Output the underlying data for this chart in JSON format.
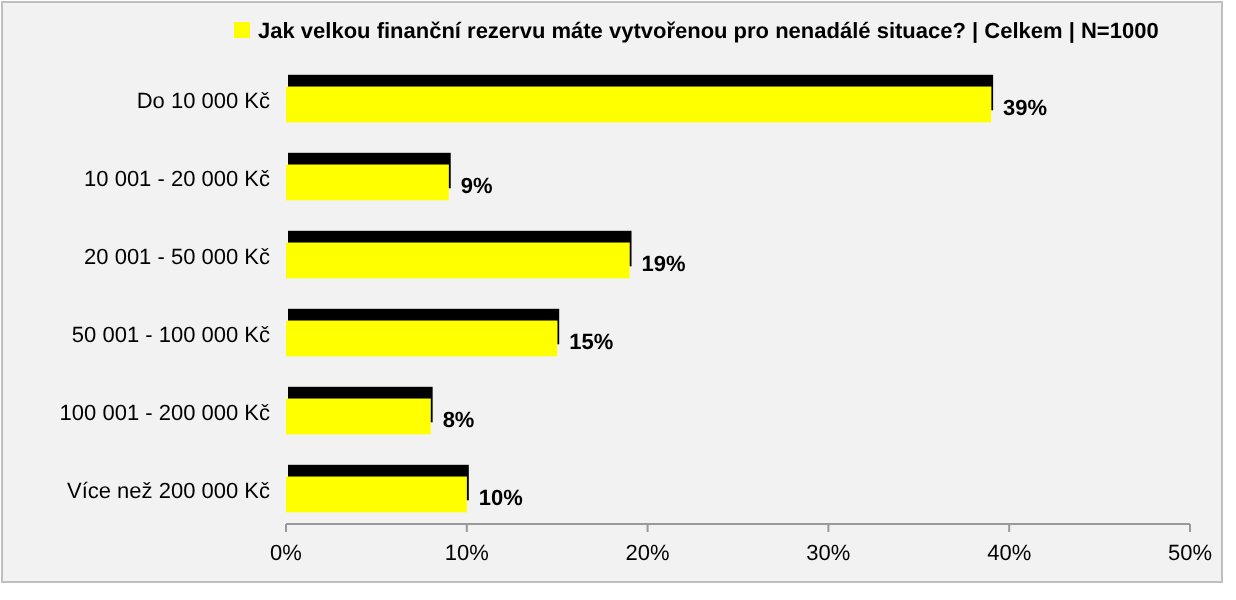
{
  "chart_data": {
    "type": "bar",
    "orientation": "horizontal",
    "categories": [
      "Do 10 000 Kč",
      "10 001 - 20 000 Kč",
      "20 001 - 50 000 Kč",
      "50 001 - 100 000 Kč",
      "100 001 - 200 000 Kč",
      "Více než 200 000 Kč"
    ],
    "series": [
      {
        "name": "Jak velkou finanční rezervu máte vytvořenou pro nenadálé situace? | Celkem | N=1000",
        "color": "#ffff00",
        "values": [
          39,
          9,
          19,
          15,
          8,
          10
        ],
        "value_labels": [
          "39%",
          "9%",
          "19%",
          "15%",
          "8%",
          "10%"
        ]
      }
    ],
    "xlim": [
      0,
      50
    ],
    "xticks": [
      {
        "value": 0,
        "label": "0%"
      },
      {
        "value": 10,
        "label": "10%"
      },
      {
        "value": 20,
        "label": "20%"
      },
      {
        "value": 30,
        "label": "30%"
      },
      {
        "value": 40,
        "label": "40%"
      },
      {
        "value": 50,
        "label": "50%"
      }
    ],
    "grid": false,
    "legend": "top"
  }
}
